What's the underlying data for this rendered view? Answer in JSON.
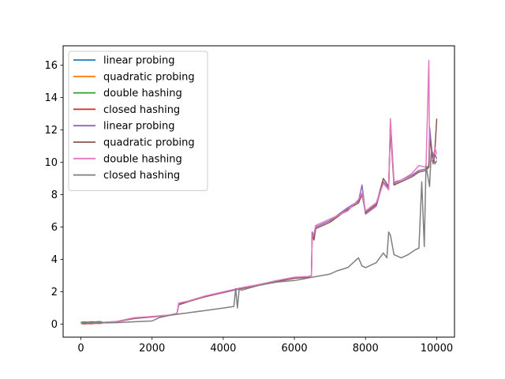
{
  "chart_data": {
    "type": "line",
    "title": "",
    "xlabel": "",
    "ylabel": "",
    "xlim": [
      -500,
      10500
    ],
    "ylim": [
      -0.8,
      17.2
    ],
    "xticks": [
      0,
      2000,
      4000,
      6000,
      8000,
      10000
    ],
    "yticks": [
      0,
      2,
      4,
      6,
      8,
      10,
      12,
      14,
      16
    ],
    "grid": false,
    "legend_position": "upper-left",
    "series": [
      {
        "name": "linear probing",
        "color": "#1f77b4",
        "x": [
          0,
          100,
          200,
          300,
          400,
          500,
          600
        ],
        "y": [
          0.1,
          0.11,
          0.12,
          0.11,
          0.13,
          0.12,
          0.13
        ]
      },
      {
        "name": "quadratic probing",
        "color": "#ff7f0e",
        "x": [
          0,
          100,
          200,
          300,
          400,
          500,
          600
        ],
        "y": [
          0.1,
          0.12,
          0.11,
          0.13,
          0.12,
          0.14,
          0.13
        ]
      },
      {
        "name": "double hashing",
        "color": "#2ca02c",
        "x": [
          0,
          100,
          200,
          300,
          400,
          500,
          600
        ],
        "y": [
          0.12,
          0.14,
          0.12,
          0.15,
          0.13,
          0.16,
          0.14
        ]
      },
      {
        "name": "closed hashing",
        "color": "#d62728",
        "x": [
          0,
          100,
          200,
          300,
          400,
          500,
          600
        ],
        "y": [
          0.05,
          0.02,
          0.04,
          0.03,
          0.06,
          0.05,
          0.07
        ]
      },
      {
        "name": "linear probing",
        "color": "#9467bd",
        "x": [
          0,
          500,
          1000,
          1500,
          2000,
          2500,
          2700,
          2750,
          3000,
          3500,
          4000,
          4500,
          5000,
          5500,
          6000,
          6400,
          6480,
          6500,
          6550,
          6600,
          7000,
          7500,
          7800,
          7900,
          8000,
          8300,
          8500,
          8650,
          8700,
          8800,
          9000,
          9300,
          9500,
          9700,
          9780,
          9800,
          9900,
          9950,
          10000
        ],
        "y": [
          0.05,
          0.08,
          0.15,
          0.35,
          0.45,
          0.55,
          0.65,
          1.25,
          1.4,
          1.7,
          1.95,
          2.2,
          2.4,
          2.65,
          2.85,
          2.9,
          3.0,
          5.7,
          5.3,
          6.0,
          6.4,
          7.2,
          7.6,
          8.6,
          6.8,
          7.3,
          8.8,
          8.4,
          12.5,
          8.7,
          8.9,
          9.2,
          9.5,
          9.6,
          9.8,
          12.2,
          9.9,
          10.5,
          10.2
        ]
      },
      {
        "name": "quadratic probing",
        "color": "#8c564b",
        "x": [
          0,
          500,
          1000,
          1500,
          2000,
          2500,
          2700,
          2750,
          3000,
          3500,
          4000,
          4500,
          5000,
          5500,
          6000,
          6400,
          6480,
          6500,
          6550,
          6600,
          7000,
          7500,
          7800,
          7900,
          8000,
          8300,
          8500,
          8650,
          8700,
          8800,
          9000,
          9300,
          9500,
          9700,
          9780,
          9800,
          9900,
          9950,
          10000
        ],
        "y": [
          0.06,
          0.09,
          0.16,
          0.36,
          0.46,
          0.56,
          0.66,
          1.2,
          1.38,
          1.72,
          1.97,
          2.22,
          2.42,
          2.63,
          2.84,
          2.92,
          3.0,
          5.5,
          5.2,
          5.9,
          6.3,
          7.1,
          7.5,
          8.0,
          6.9,
          7.4,
          9.0,
          8.5,
          12.1,
          8.6,
          8.8,
          9.1,
          9.4,
          9.5,
          9.7,
          11.5,
          10.0,
          10.8,
          12.7
        ]
      },
      {
        "name": "double hashing",
        "color": "#e377c2",
        "x": [
          0,
          500,
          1000,
          1500,
          2000,
          2500,
          2700,
          2750,
          3000,
          3500,
          4000,
          4500,
          5000,
          5500,
          6000,
          6400,
          6480,
          6500,
          6550,
          6600,
          7000,
          7500,
          7800,
          7900,
          8000,
          8300,
          8500,
          8650,
          8700,
          8800,
          9000,
          9300,
          9500,
          9700,
          9780,
          9800,
          9900,
          9950,
          10000
        ],
        "y": [
          0.07,
          0.1,
          0.17,
          0.4,
          0.48,
          0.57,
          0.67,
          1.3,
          1.42,
          1.75,
          2.0,
          2.25,
          2.45,
          2.7,
          2.9,
          2.95,
          3.0,
          5.4,
          5.6,
          6.1,
          6.5,
          7.0,
          7.7,
          8.1,
          7.0,
          7.5,
          8.7,
          8.3,
          12.7,
          8.8,
          8.9,
          9.3,
          9.8,
          9.7,
          16.3,
          10.0,
          10.2,
          10.9,
          10.5
        ]
      },
      {
        "name": "closed hashing",
        "color": "#7f7f7f",
        "x": [
          0,
          500,
          1000,
          1500,
          2000,
          2200,
          2500,
          3000,
          3500,
          4000,
          4300,
          4350,
          4400,
          4450,
          4500,
          5000,
          5500,
          6000,
          6500,
          7000,
          7200,
          7500,
          7800,
          7900,
          8000,
          8300,
          8500,
          8600,
          8650,
          8700,
          8800,
          9000,
          9200,
          9400,
          9500,
          9580,
          9650,
          9700,
          9800,
          9850,
          9900,
          9950,
          10000
        ],
        "y": [
          0.05,
          0.08,
          0.1,
          0.15,
          0.2,
          0.4,
          0.55,
          0.7,
          0.85,
          1.0,
          1.1,
          2.2,
          1.0,
          2.2,
          2.1,
          2.4,
          2.6,
          2.7,
          2.9,
          3.1,
          3.3,
          3.5,
          4.1,
          3.6,
          3.5,
          3.8,
          4.4,
          4.1,
          5.7,
          5.5,
          4.3,
          4.1,
          4.3,
          4.6,
          4.7,
          8.8,
          4.8,
          9.8,
          8.5,
          10.8,
          10.5,
          9.9,
          10.1
        ]
      }
    ]
  }
}
